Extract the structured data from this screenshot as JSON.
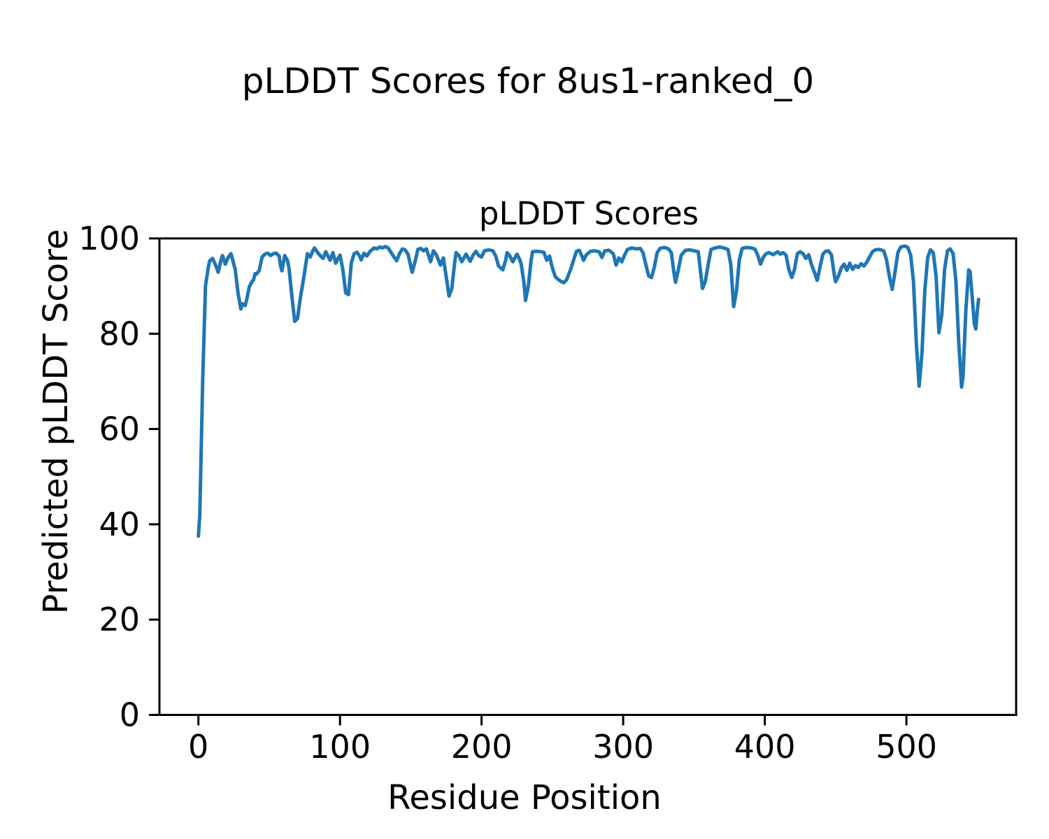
{
  "figure": {
    "suptitle": "pLDDT Scores for 8us1-ranked_0"
  },
  "chart_data": {
    "type": "line",
    "title": "pLDDT Scores",
    "suptitle": "pLDDT Scores for 8us1-ranked_0",
    "xlabel": "Residue Position",
    "ylabel": "Predicted pLDDT Score",
    "xlim": [
      -27.5,
      577.5
    ],
    "ylim": [
      0,
      100
    ],
    "xticks": [
      0,
      100,
      200,
      300,
      400,
      500
    ],
    "yticks": [
      0,
      20,
      40,
      60,
      80,
      100
    ],
    "grid": false,
    "legend_position": "none",
    "line_color": "#1f77b4",
    "axis_color": "#000000",
    "line_width": 5,
    "series": [
      {
        "name": "pLDDT",
        "points": [
          [
            0,
            37.5
          ],
          [
            1,
            42
          ],
          [
            3,
            70
          ],
          [
            5,
            90
          ],
          [
            7,
            94
          ],
          [
            8,
            95.3
          ],
          [
            10,
            95.8
          ],
          [
            12,
            94.5
          ],
          [
            14,
            92.9
          ],
          [
            16,
            95.5
          ],
          [
            17,
            96.4
          ],
          [
            19,
            94.6
          ],
          [
            21,
            96
          ],
          [
            23,
            96.8
          ],
          [
            26,
            93.5
          ],
          [
            28,
            88.5
          ],
          [
            30,
            85.2
          ],
          [
            31,
            86.3
          ],
          [
            33,
            85.9
          ],
          [
            34,
            87
          ],
          [
            36,
            89.9
          ],
          [
            38,
            91
          ],
          [
            39,
            91.3
          ],
          [
            40,
            92.6
          ],
          [
            41,
            92.5
          ],
          [
            43,
            93.3
          ],
          [
            45,
            96.1
          ],
          [
            47,
            96.7
          ],
          [
            49,
            96.9
          ],
          [
            51,
            96.4
          ],
          [
            53,
            96.8
          ],
          [
            55,
            96.9
          ],
          [
            57,
            96.3
          ],
          [
            58,
            94.3
          ],
          [
            59,
            93.2
          ],
          [
            61,
            96.4
          ],
          [
            63,
            95.3
          ],
          [
            64,
            93.7
          ],
          [
            66,
            88
          ],
          [
            68,
            82.6
          ],
          [
            70,
            83.2
          ],
          [
            72,
            87.5
          ],
          [
            74,
            91
          ],
          [
            75,
            92.9
          ],
          [
            77,
            96.8
          ],
          [
            79,
            96.1
          ],
          [
            81,
            97.5
          ],
          [
            82,
            98
          ],
          [
            84,
            97.1
          ],
          [
            86,
            96.4
          ],
          [
            88,
            95.8
          ],
          [
            90,
            97.2
          ],
          [
            93,
            95.4
          ],
          [
            95,
            97
          ],
          [
            97,
            94.8
          ],
          [
            99,
            96
          ],
          [
            100,
            96.5
          ],
          [
            102,
            93.5
          ],
          [
            104,
            88.6
          ],
          [
            106,
            88.2
          ],
          [
            108,
            94.9
          ],
          [
            110,
            96.8
          ],
          [
            112,
            97.1
          ],
          [
            114,
            96.2
          ],
          [
            115,
            95.5
          ],
          [
            117,
            96.9
          ],
          [
            119,
            96.3
          ],
          [
            121,
            97.2
          ],
          [
            124,
            98
          ],
          [
            126,
            97.8
          ],
          [
            128,
            98.2
          ],
          [
            130,
            98
          ],
          [
            132,
            98.3
          ],
          [
            134,
            98
          ],
          [
            137,
            96.6
          ],
          [
            140,
            95.3
          ],
          [
            142,
            96.8
          ],
          [
            144,
            97.8
          ],
          [
            146,
            97.6
          ],
          [
            148,
            96.7
          ],
          [
            151,
            92.9
          ],
          [
            153,
            95.1
          ],
          [
            155,
            97.7
          ],
          [
            157,
            97.9
          ],
          [
            159,
            97.4
          ],
          [
            161,
            97.8
          ],
          [
            164,
            95.1
          ],
          [
            166,
            97.4
          ],
          [
            168,
            96.6
          ],
          [
            171,
            94.4
          ],
          [
            173,
            95.9
          ],
          [
            175,
            92
          ],
          [
            177,
            87.9
          ],
          [
            179,
            89.5
          ],
          [
            181,
            95
          ],
          [
            182,
            97
          ],
          [
            184,
            96.4
          ],
          [
            186,
            95.1
          ],
          [
            189,
            96.7
          ],
          [
            192,
            95.2
          ],
          [
            194,
            96.5
          ],
          [
            196,
            97.3
          ],
          [
            198,
            96.4
          ],
          [
            200,
            96.1
          ],
          [
            202,
            97.4
          ],
          [
            205,
            97.6
          ],
          [
            208,
            97.4
          ],
          [
            210,
            96.3
          ],
          [
            212,
            94.2
          ],
          [
            215,
            93.4
          ],
          [
            217,
            95.5
          ],
          [
            218,
            97
          ],
          [
            220,
            96.3
          ],
          [
            222,
            95.1
          ],
          [
            225,
            96.7
          ],
          [
            227,
            95.5
          ],
          [
            228,
            94.6
          ],
          [
            230,
            90.5
          ],
          [
            231,
            87
          ],
          [
            233,
            90
          ],
          [
            235,
            95.5
          ],
          [
            236,
            97.2
          ],
          [
            239,
            97.3
          ],
          [
            242,
            97.2
          ],
          [
            244,
            97.1
          ],
          [
            246,
            95.4
          ],
          [
            248,
            96.3
          ],
          [
            250,
            93.8
          ],
          [
            252,
            92
          ],
          [
            254,
            91.4
          ],
          [
            256,
            91
          ],
          [
            258,
            90.7
          ],
          [
            260,
            91.3
          ],
          [
            263,
            93.6
          ],
          [
            265,
            95.5
          ],
          [
            267,
            97.3
          ],
          [
            269,
            97.5
          ],
          [
            271,
            96.2
          ],
          [
            272,
            95.4
          ],
          [
            274,
            96.6
          ],
          [
            277,
            97.3
          ],
          [
            280,
            97.4
          ],
          [
            283,
            97.2
          ],
          [
            285,
            96
          ],
          [
            287,
            97.4
          ],
          [
            290,
            97.5
          ],
          [
            293,
            96.8
          ],
          [
            295,
            94.4
          ],
          [
            297,
            95.9
          ],
          [
            299,
            95.1
          ],
          [
            301,
            96.5
          ],
          [
            303,
            97.7
          ],
          [
            306,
            98
          ],
          [
            309,
            97.8
          ],
          [
            312,
            97.9
          ],
          [
            314,
            97
          ],
          [
            316,
            94.5
          ],
          [
            318,
            92.1
          ],
          [
            320,
            91.8
          ],
          [
            322,
            94
          ],
          [
            324,
            97
          ],
          [
            326,
            97.9
          ],
          [
            329,
            98.1
          ],
          [
            332,
            97.8
          ],
          [
            334,
            97
          ],
          [
            336,
            92.5
          ],
          [
            337,
            90.8
          ],
          [
            339,
            93.5
          ],
          [
            341,
            96.5
          ],
          [
            344,
            97.5
          ],
          [
            347,
            97.6
          ],
          [
            350,
            97.4
          ],
          [
            353,
            97.2
          ],
          [
            355,
            92
          ],
          [
            356,
            89.5
          ],
          [
            358,
            91
          ],
          [
            360,
            94.5
          ],
          [
            362,
            97.7
          ],
          [
            365,
            98
          ],
          [
            368,
            98.2
          ],
          [
            371,
            98
          ],
          [
            374,
            97.7
          ],
          [
            376,
            94.5
          ],
          [
            378,
            85.7
          ],
          [
            380,
            89
          ],
          [
            382,
            95.5
          ],
          [
            384,
            97.9
          ],
          [
            387,
            98.1
          ],
          [
            390,
            98
          ],
          [
            393,
            97.8
          ],
          [
            395,
            96.5
          ],
          [
            397,
            94.6
          ],
          [
            399,
            96.1
          ],
          [
            401,
            96.8
          ],
          [
            403,
            97
          ],
          [
            406,
            96.6
          ],
          [
            409,
            97.2
          ],
          [
            411,
            96.7
          ],
          [
            413,
            97
          ],
          [
            415,
            96.5
          ],
          [
            417,
            93.5
          ],
          [
            419,
            91.8
          ],
          [
            421,
            93.5
          ],
          [
            423,
            96.8
          ],
          [
            425,
            97.2
          ],
          [
            427,
            96.8
          ],
          [
            429,
            95.8
          ],
          [
            431,
            96.6
          ],
          [
            433,
            94.5
          ],
          [
            435,
            92.9
          ],
          [
            437,
            91.2
          ],
          [
            439,
            94
          ],
          [
            441,
            96.7
          ],
          [
            443,
            97.3
          ],
          [
            445,
            97.4
          ],
          [
            447,
            96.6
          ],
          [
            449,
            92.5
          ],
          [
            450,
            90.9
          ],
          [
            452,
            92.1
          ],
          [
            454,
            93.8
          ],
          [
            456,
            94.6
          ],
          [
            458,
            93.3
          ],
          [
            460,
            94.8
          ],
          [
            462,
            93.5
          ],
          [
            464,
            94.3
          ],
          [
            466,
            93.9
          ],
          [
            468,
            94.7
          ],
          [
            470,
            94.2
          ],
          [
            472,
            95
          ],
          [
            474,
            96.1
          ],
          [
            476,
            97.2
          ],
          [
            478,
            97.6
          ],
          [
            481,
            97.7
          ],
          [
            484,
            97.4
          ],
          [
            486,
            95.5
          ],
          [
            488,
            92
          ],
          [
            490,
            89.3
          ],
          [
            492,
            93
          ],
          [
            494,
            97
          ],
          [
            496,
            98.2
          ],
          [
            499,
            98.4
          ],
          [
            501,
            98.1
          ],
          [
            503,
            96.5
          ],
          [
            505,
            91
          ],
          [
            507,
            78
          ],
          [
            509,
            69
          ],
          [
            511,
            76
          ],
          [
            513,
            89
          ],
          [
            515,
            96
          ],
          [
            517,
            97.6
          ],
          [
            519,
            97
          ],
          [
            521,
            92
          ],
          [
            523,
            80.2
          ],
          [
            525,
            84
          ],
          [
            527,
            93.5
          ],
          [
            529,
            97.4
          ],
          [
            531,
            97.8
          ],
          [
            533,
            96.8
          ],
          [
            535,
            91
          ],
          [
            537,
            78
          ],
          [
            539,
            68.8
          ],
          [
            540,
            71
          ],
          [
            542,
            85
          ],
          [
            544,
            93.4
          ],
          [
            545,
            93
          ],
          [
            546,
            89.5
          ],
          [
            548,
            82
          ],
          [
            549,
            81
          ],
          [
            550,
            84.5
          ],
          [
            551,
            87.2
          ]
        ]
      }
    ]
  }
}
